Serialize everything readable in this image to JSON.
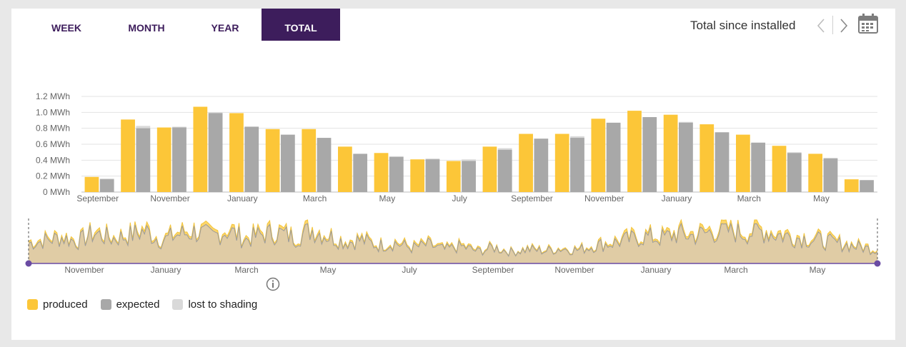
{
  "tabs": [
    {
      "label": "WEEK",
      "active": false
    },
    {
      "label": "MONTH",
      "active": false
    },
    {
      "label": "YEAR",
      "active": false
    },
    {
      "label": "TOTAL",
      "active": true
    }
  ],
  "period_label": "Total since installed",
  "icons": {
    "prev": "chevron-left-icon",
    "next": "chevron-right-icon",
    "calendar": "calendar-icon",
    "info": "info-icon"
  },
  "colors": {
    "produced": "#fcc638",
    "expected": "#a8a8a8",
    "lost": "#d9d9d9",
    "accent": "#3d1d5c",
    "navigator_fill": "#e0cca5",
    "navigator_handle": "#6a4ba3"
  },
  "legend": [
    {
      "label": "produced",
      "color": "#fcc638"
    },
    {
      "label": "expected",
      "color": "#a8a8a8"
    },
    {
      "label": "lost to shading",
      "color": "#d9d9d9"
    }
  ],
  "chart_data": [
    {
      "type": "bar",
      "unit": "MWh",
      "ylim": [
        0,
        1.2
      ],
      "y_ticks": [
        "0 MWh",
        "0.2 MWh",
        "0.4 MWh",
        "0.6 MWh",
        "0.8 MWh",
        "1.0 MWh",
        "1.2 MWh"
      ],
      "y_tick_values": [
        0,
        0.2,
        0.4,
        0.6,
        0.8,
        1.0,
        1.2
      ],
      "x_tick_labels": [
        {
          "index": 0,
          "label": "September"
        },
        {
          "index": 2,
          "label": "November"
        },
        {
          "index": 4,
          "label": "January"
        },
        {
          "index": 6,
          "label": "March"
        },
        {
          "index": 8,
          "label": "May"
        },
        {
          "index": 10,
          "label": "July"
        },
        {
          "index": 12,
          "label": "September"
        },
        {
          "index": 14,
          "label": "November"
        },
        {
          "index": 16,
          "label": "January"
        },
        {
          "index": 18,
          "label": "March"
        },
        {
          "index": 20,
          "label": "May"
        }
      ],
      "grid": true,
      "series": [
        {
          "name": "produced",
          "values": [
            0.19,
            0.91,
            0.81,
            1.07,
            0.99,
            0.79,
            0.79,
            0.57,
            0.49,
            0.41,
            0.39,
            0.57,
            0.73,
            0.73,
            0.92,
            1.02,
            0.97,
            0.85,
            0.72,
            0.58,
            0.48,
            0.16
          ]
        },
        {
          "name": "expected",
          "values": [
            0.16,
            0.8,
            0.81,
            0.99,
            0.82,
            0.72,
            0.68,
            0.48,
            0.44,
            0.41,
            0.39,
            0.53,
            0.67,
            0.68,
            0.87,
            0.94,
            0.87,
            0.75,
            0.62,
            0.49,
            0.42,
            0.15
          ]
        },
        {
          "name": "lost to shading",
          "values": [
            0.01,
            0.03,
            0.01,
            0.01,
            0.0,
            0.0,
            0.0,
            0.0,
            0.01,
            0.01,
            0.02,
            0.02,
            0.0,
            0.02,
            0.0,
            0.0,
            0.01,
            0.0,
            0.0,
            0.01,
            0.01,
            0.0
          ]
        }
      ]
    },
    {
      "type": "area",
      "role": "navigator",
      "x_tick_labels": [
        "November",
        "January",
        "March",
        "May",
        "July",
        "September",
        "November",
        "January",
        "March",
        "May"
      ],
      "series": [
        {
          "name": "produced",
          "values": [
            0.55,
            0.62,
            0.7,
            0.58,
            0.82,
            0.66,
            0.74,
            0.88,
            0.61,
            0.79,
            0.85,
            0.72,
            0.9,
            0.64,
            0.78,
            0.83,
            0.69,
            0.92,
            0.74,
            0.58,
            0.63,
            0.48,
            0.56,
            0.42,
            0.5,
            0.37,
            0.46,
            0.33,
            0.42,
            0.3,
            0.38,
            0.34,
            0.4,
            0.36,
            0.48,
            0.55,
            0.64,
            0.72,
            0.68,
            0.8,
            0.75,
            0.86,
            0.9,
            0.82,
            0.88,
            0.79,
            0.72,
            0.66,
            0.58,
            0.52,
            0.44,
            0.38
          ]
        },
        {
          "name": "expected",
          "values": [
            0.5,
            0.57,
            0.64,
            0.54,
            0.75,
            0.61,
            0.68,
            0.8,
            0.56,
            0.72,
            0.78,
            0.66,
            0.82,
            0.58,
            0.71,
            0.76,
            0.63,
            0.84,
            0.68,
            0.53,
            0.58,
            0.44,
            0.51,
            0.38,
            0.46,
            0.34,
            0.42,
            0.3,
            0.39,
            0.28,
            0.35,
            0.31,
            0.37,
            0.33,
            0.44,
            0.5,
            0.58,
            0.66,
            0.62,
            0.73,
            0.68,
            0.78,
            0.82,
            0.75,
            0.8,
            0.72,
            0.65,
            0.6,
            0.53,
            0.47,
            0.4,
            0.34
          ]
        }
      ]
    }
  ]
}
